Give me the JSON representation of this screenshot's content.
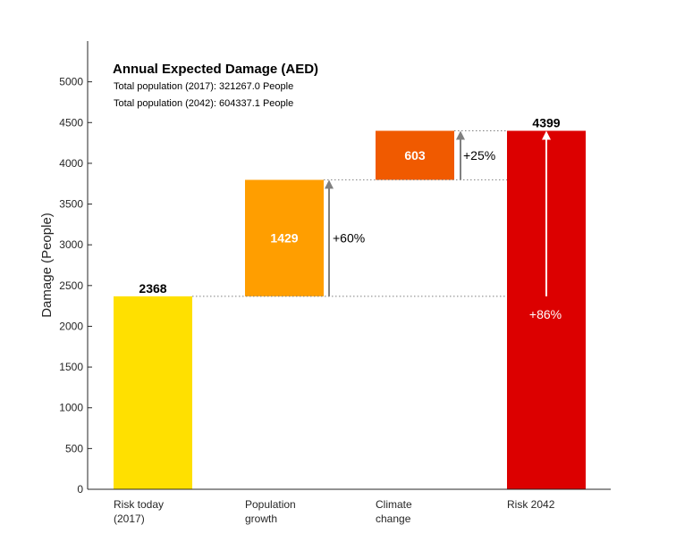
{
  "chart_data": {
    "type": "bar",
    "title": "Annual Expected Damage (AED)",
    "subtitle_lines": [
      "Total population (2017): 321267.0  People",
      "Total population (2042): 604337.1  People"
    ],
    "ylabel": "Damage (People)",
    "ylim": [
      0,
      5500
    ],
    "yticks": [
      0,
      500,
      1000,
      1500,
      2000,
      2500,
      3000,
      3500,
      4000,
      4500,
      5000
    ],
    "categories": [
      [
        "Risk today",
        "(2017)"
      ],
      [
        "Population",
        "growth"
      ],
      [
        "Climate",
        "change"
      ],
      [
        "Risk 2042"
      ]
    ],
    "bars": [
      {
        "base": 0,
        "top": 2368,
        "label": "2368",
        "color": "#FFE000",
        "label_position": "above"
      },
      {
        "base": 2368,
        "top": 3797,
        "label": "1429",
        "color": "#FF9E00",
        "label_position": "inside"
      },
      {
        "base": 3797,
        "top": 4399,
        "label": "603",
        "color": "#F05A00",
        "label_position": "inside"
      },
      {
        "base": 0,
        "top": 4399,
        "label": "4399",
        "color": "#DC0000",
        "label_position": "above"
      }
    ],
    "changes": [
      {
        "from": 2368,
        "to": 3797,
        "label": "+60%"
      },
      {
        "from": 3797,
        "to": 4399,
        "label": "+25%"
      },
      {
        "from": 2368,
        "to": 4399,
        "label": "+86%"
      }
    ],
    "grid": false
  }
}
